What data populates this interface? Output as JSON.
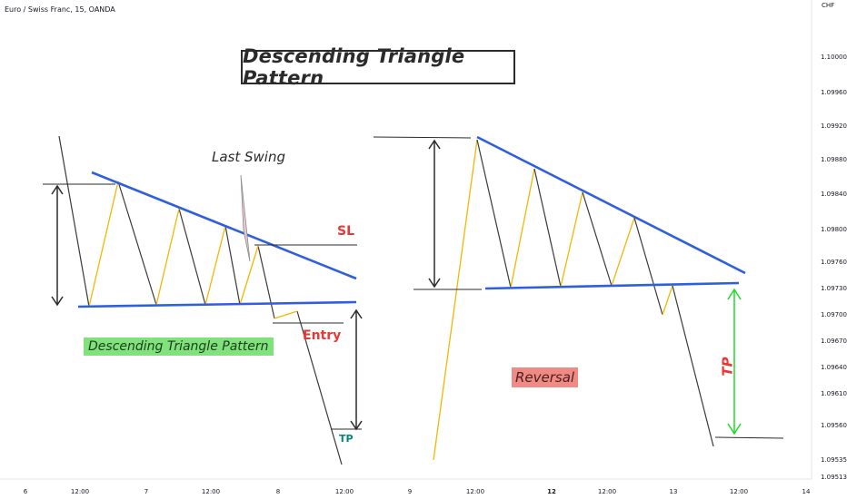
{
  "header": {
    "symbol": "Euro / Swiss Franc, 15, OANDA",
    "currency": "CHF"
  },
  "annotations": {
    "title": "Descending Triangle Pattern",
    "pattern_label": "Descending Triangle Pattern",
    "reversal_label": "Reversal",
    "last_swing": "Last Swing",
    "sl": "SL",
    "entry": "Entry",
    "tp_left": "TP",
    "tp_right": "TP"
  },
  "colors": {
    "trendline": "#2f5fe0",
    "swing": "#f2b705",
    "price": "#3a3a3a",
    "marker": "#2b2b2b",
    "tp_arrow": "#22d82a",
    "sl_text": "#e53935",
    "tp_text": "#00897b",
    "pattern_bg": "#7fe27a",
    "reversal_bg": "#ef8a84"
  },
  "chart_data": {
    "type": "line",
    "y_axis": {
      "ticks": [
        "1.10000",
        "1.09960",
        "1.09920",
        "1.09880",
        "1.09840",
        "1.09800",
        "1.09760",
        "1.09730",
        "1.09700",
        "1.09670",
        "1.09640",
        "1.09610",
        "1.09560",
        "1.09535",
        "1.09513"
      ]
    },
    "x_axis": {
      "ticks": [
        "6",
        "12:00",
        "7",
        "12:00",
        "8",
        "12:00",
        "9",
        "12:00",
        "12",
        "12:00",
        "13",
        "12:00",
        "14"
      ]
    }
  }
}
